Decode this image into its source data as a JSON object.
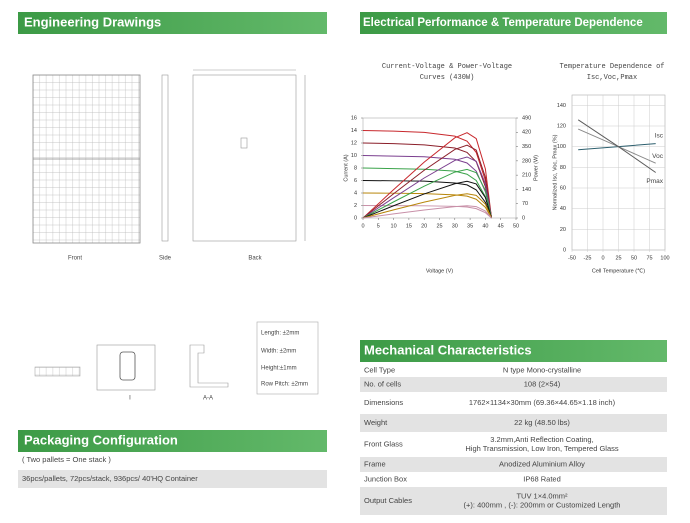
{
  "engineering": {
    "title": "Engineering Drawings",
    "views": [
      "Front",
      "Side",
      "Back"
    ],
    "section_labels": [
      "I",
      "A-A"
    ],
    "tolerances": [
      "Length: ±2mm",
      "Width: ±2mm",
      "Height:±1mm",
      "Row Pitch: ±2mm"
    ]
  },
  "packaging": {
    "title": "Packaging Configuration",
    "note": "( Two pallets = One stack )",
    "details": "36pcs/pallets, 72pcs/stack, 936pcs/ 40'HQ Container"
  },
  "electrical": {
    "title": "Electrical Performance & Temperature Dependence"
  },
  "iv_chart": {
    "type": "line",
    "title": [
      "Current-Voltage & Power-Voltage",
      "Curves (430W)"
    ],
    "xlabel": "Voltage (V)",
    "ylabel": "Current (A)",
    "y2label": "Power (W)",
    "x": [
      0,
      10,
      20,
      30,
      34,
      37,
      40,
      42
    ],
    "xlim": [
      0,
      50
    ],
    "xticks": [
      0,
      5,
      10,
      15,
      20,
      25,
      30,
      35,
      40,
      45,
      50
    ],
    "ylim": [
      0,
      16
    ],
    "yticks": [
      0,
      2,
      4,
      6,
      8,
      10,
      12,
      14,
      16
    ],
    "y2lim": [
      0,
      490
    ],
    "y2ticks": [
      0,
      70,
      140,
      210,
      280,
      350,
      420,
      490
    ],
    "series": [
      {
        "color": "#c8282d",
        "values": [
          14,
          13.9,
          13.7,
          13.1,
          12.3,
          10.5,
          6,
          0
        ]
      },
      {
        "color": "#8b1f2a",
        "values": [
          12,
          11.9,
          11.7,
          11.2,
          10.5,
          9,
          5,
          0
        ]
      },
      {
        "color": "#7b3f8f",
        "values": [
          10,
          9.9,
          9.8,
          9.4,
          8.8,
          7.5,
          4.2,
          0
        ]
      },
      {
        "color": "#3aa34a",
        "values": [
          8,
          7.9,
          7.8,
          7.5,
          7,
          6,
          3.4,
          0
        ]
      },
      {
        "color": "#111111",
        "values": [
          6,
          5.95,
          5.9,
          5.6,
          5.3,
          4.5,
          2.5,
          0
        ]
      },
      {
        "color": "#b8860b",
        "values": [
          4,
          3.97,
          3.9,
          3.7,
          3.5,
          3,
          1.7,
          0
        ]
      },
      {
        "color": "#c890a8",
        "values": [
          2,
          1.98,
          1.95,
          1.87,
          1.76,
          1.5,
          0.85,
          0
        ]
      },
      {
        "color": "#c8282d",
        "axis": "y2",
        "values": [
          0,
          139,
          274,
          393,
          418,
          389,
          240,
          0
        ]
      },
      {
        "color": "#8b1f2a",
        "axis": "y2",
        "values": [
          0,
          119,
          234,
          336,
          357,
          333,
          200,
          0
        ]
      },
      {
        "color": "#7b3f8f",
        "axis": "y2",
        "values": [
          0,
          99,
          196,
          282,
          299,
          278,
          168,
          0
        ]
      },
      {
        "color": "#3aa34a",
        "axis": "y2",
        "values": [
          0,
          79,
          156,
          225,
          238,
          222,
          136,
          0
        ]
      },
      {
        "color": "#111111",
        "axis": "y2",
        "values": [
          0,
          60,
          118,
          168,
          180,
          167,
          100,
          0
        ]
      },
      {
        "color": "#b8860b",
        "axis": "y2",
        "values": [
          0,
          40,
          78,
          111,
          119,
          111,
          68,
          0
        ]
      },
      {
        "color": "#c890a8",
        "axis": "y2",
        "values": [
          0,
          20,
          39,
          56,
          60,
          56,
          34,
          0
        ]
      }
    ]
  },
  "temp_chart": {
    "type": "line",
    "title": [
      "Temperature Dependence of",
      "Isc,Voc,Pmax"
    ],
    "xlabel": "Cell Temperature (℃)",
    "ylabel": "Normalized Isc, Voc, Pmax (%)",
    "grid": true,
    "x": [
      -40,
      25,
      85
    ],
    "xlim": [
      -50,
      100
    ],
    "xticks": [
      -50,
      -25,
      0,
      25,
      50,
      75,
      100
    ],
    "ylim": [
      0,
      150
    ],
    "yticks": [
      0,
      20,
      40,
      60,
      80,
      100,
      120,
      140
    ],
    "series": [
      {
        "name": "Isc",
        "color": "#2d5f6e",
        "values": [
          97,
          100,
          103
        ]
      },
      {
        "name": "Voc",
        "color": "#8a8a8a",
        "values": [
          117,
          100,
          84
        ]
      },
      {
        "name": "Pmax",
        "color": "#5c5c5c",
        "values": [
          126,
          100,
          75
        ]
      }
    ]
  },
  "mechanical": {
    "title": "Mechanical Characteristics",
    "rows": [
      {
        "label": "Cell Type",
        "value": [
          "N type Mono-crystalline"
        ]
      },
      {
        "label": "No. of cells",
        "value": [
          "108 (2×54)"
        ]
      },
      {
        "label": "Dimensions",
        "value": [
          "1762×1134×30mm (69.36×44.65×1.18 inch)"
        ]
      },
      {
        "label": "Weight",
        "value": [
          "22 kg (48.50 lbs)"
        ]
      },
      {
        "label": "Front Glass",
        "value": [
          "3.2mm,Anti Reflection Coating,",
          "High Transmission, Low Iron, Tempered Glass"
        ]
      },
      {
        "label": "Frame",
        "value": [
          "Anodized Aluminium Alloy"
        ]
      },
      {
        "label": "Junction Box",
        "value": [
          "IP68 Rated"
        ]
      },
      {
        "label": "Output Cables",
        "value": [
          "TUV 1×4.0mm²",
          "(+): 400mm , (-): 200mm or Customized Length"
        ]
      }
    ]
  }
}
